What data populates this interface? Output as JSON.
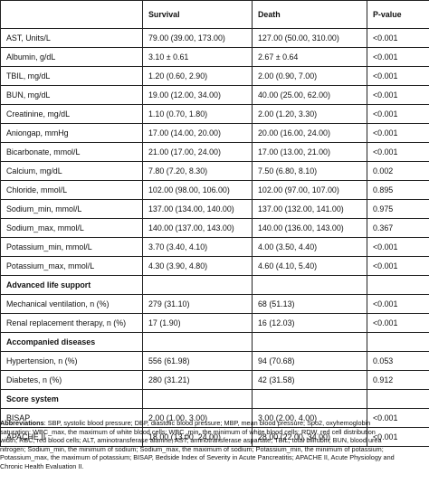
{
  "header": [
    "",
    "Survival",
    "Death",
    "P-value"
  ],
  "rows": [
    [
      "AST, Units/L",
      "79.00 (39.00, 173.00)",
      "127.00 (50.00, 310.00)",
      "<0.001"
    ],
    [
      "Albumin, g/dL",
      "3.10 ± 0.61",
      "2.67 ± 0.64",
      "<0.001"
    ],
    [
      "TBIL, mg/dL",
      "1.20 (0.60, 2.90)",
      "2.00 (0.90, 7.00)",
      "<0.001"
    ],
    [
      "BUN, mg/dL",
      "19.00 (12.00, 34.00)",
      "40.00 (25.00, 62.00)",
      "<0.001"
    ],
    [
      "Creatinine, mg/dL",
      "1.10 (0.70, 1.80)",
      "2.00 (1.20, 3.30)",
      "<0.001"
    ],
    [
      "Aniongap, mmHg",
      "17.00 (14.00, 20.00)",
      "20.00 (16.00, 24.00)",
      "<0.001"
    ],
    [
      "Bicarbonate, mmol/L",
      "21.00 (17.00, 24.00)",
      "17.00 (13.00, 21.00)",
      "<0.001"
    ],
    [
      "Calcium, mg/dL",
      "7.80 (7.20, 8.30)",
      "7.50 (6.80, 8.10)",
      "0.002"
    ],
    [
      "Chloride, mmol/L",
      "102.00 (98.00, 106.00)",
      "102.00 (97.00, 107.00)",
      "0.895"
    ],
    [
      "Sodium_min, mmol/L",
      "137.00 (134.00, 140.00)",
      "137.00 (132.00, 141.00)",
      "0.975"
    ],
    [
      "Sodium_max, mmol/L",
      "140.00 (137.00, 143.00)",
      "140.00 (136.00, 143.00)",
      "0.367"
    ],
    [
      "Potassium_min, mmol/L",
      "3.70 (3.40, 4.10)",
      "4.00 (3.50, 4.40)",
      "<0.001"
    ],
    [
      "Potassium_max, mmol/L",
      "4.30 (3.90, 4.80)",
      "4.60 (4.10, 5.40)",
      "<0.001"
    ],
    [
      "Advanced life support",
      "",
      "",
      ""
    ],
    [
      "Mechanical ventilation, n (%)",
      "279 (31.10)",
      "68 (51.13)",
      "<0.001"
    ],
    [
      "Renal replacement therapy, n (%)",
      "17 (1.90)",
      "16 (12.03)",
      "<0.001"
    ],
    [
      "Accompanied diseases",
      "",
      "",
      ""
    ],
    [
      "Hypertension, n (%)",
      "556 (61.98)",
      "94 (70.68)",
      "0.053"
    ],
    [
      "Diabetes, n (%)",
      "280 (31.21)",
      "42 (31.58)",
      "0.912"
    ],
    [
      "Score system",
      "",
      "",
      ""
    ],
    [
      "BISAP",
      "2.00 (1.00, 3.00)",
      "3.00 (2.00, 4.00)",
      "<0.001"
    ],
    [
      "APACHE II",
      "18.00 (13.00, 24.00)",
      "28.00 (22.00, 34.00)",
      "<0.001"
    ]
  ],
  "section_rows": [
    13,
    16,
    19
  ],
  "abbreviations": {
    "label": "Abbreviations",
    "lines": [
      ": SBP, systolic blood pressure; DBP, diastolic blood pressure; MBP, mean blood pressure; Spo2, oxyhemoglobin",
      "saturation; WBC_max, the maximum of white blood cells; WBC_min, the minimum of white blood cells; RDW, red cell distribution",
      "width; RBC, red blood cells; ALT, aminotransferase alanine; AST, aminotransferase aspartate; TBIL, total bilirubin; BUN, blood urea",
      "nitrogen; Sodium_min, the minimum of sodium; Sodium_max, the maximum of sodium; Potassium_min, the minimum of potassium;",
      "Potassium_max, the maximum of potassium; BISAP, Bedside Index of Severity in Acute Pancreatitis; APACHE II, Acute Physiology and",
      "Chronic Health Evaluation II."
    ]
  }
}
